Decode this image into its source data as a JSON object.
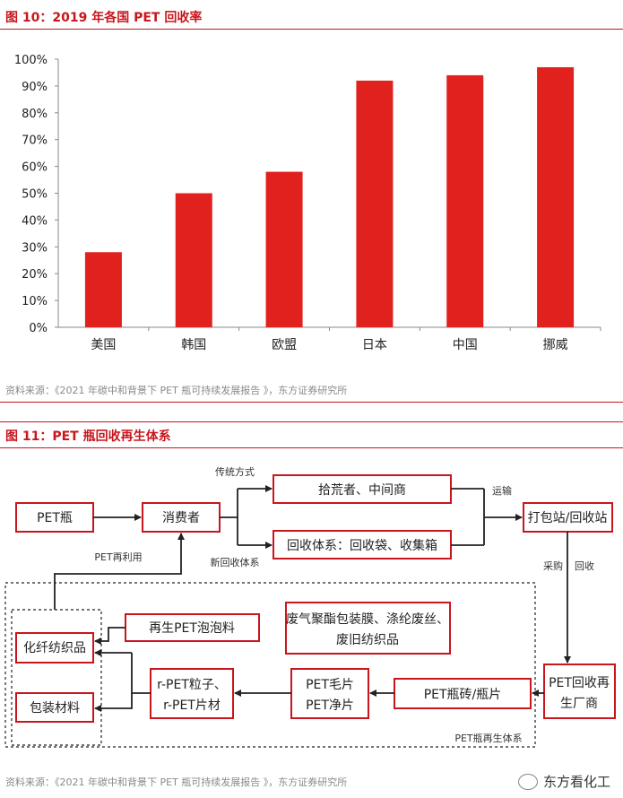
{
  "fig10": {
    "title": "图 10：2019 年各国 PET 回收率",
    "source": "资料来源：《2021 年碳中和背景下 PET 瓶可持续发展报告 》，东方证券研究所"
  },
  "chart_data": {
    "type": "bar",
    "title": "图 10：2019 年各国 PET 回收率",
    "categories": [
      "美国",
      "韩国",
      "欧盟",
      "日本",
      "中国",
      "挪威"
    ],
    "values": [
      0.28,
      0.5,
      0.58,
      0.92,
      0.94,
      0.97
    ],
    "ylim": [
      0,
      1
    ],
    "yticks": [
      "0%",
      "10%",
      "20%",
      "30%",
      "40%",
      "50%",
      "60%",
      "70%",
      "80%",
      "90%",
      "100%"
    ],
    "bar_color": "#e0211d",
    "grid": false
  },
  "fig11": {
    "title": "图 11：PET 瓶回收再生体系",
    "source": "资料来源：《2021 年碳中和背景下 PET 瓶可持续发展报告 》，东方证券研究所",
    "nodes": {
      "pet_bottle": "PET瓶",
      "consumer": "消费者",
      "scavenger": "拾荒者、中间商",
      "recycle_sys": "回收体系：回收袋、收集箱",
      "station": "打包站/回收站",
      "regen_plant_1": "PET回收再",
      "regen_plant_2": "生厂商",
      "brick": "PET瓶砖/瓶片",
      "flake_1": "PET毛片",
      "flake_2": "PET净片",
      "rpet_1": "r-PET粒子、",
      "rpet_2": "r-PET片材",
      "foam": "再生PET泡泡料",
      "fiber": "化纤纺织品",
      "packaging": "包装材料",
      "waste_1": "废气聚酯包装膜、涤纶废丝、",
      "waste_2": "废旧纺织品"
    },
    "labels": {
      "traditional": "传统方式",
      "new_system": "新回收体系",
      "transport": "运输",
      "purchase": "采购",
      "recover": "回收",
      "reuse": "PET再利用",
      "inner_system": "PET瓶再生体系"
    }
  },
  "watermark": "东方看化工"
}
